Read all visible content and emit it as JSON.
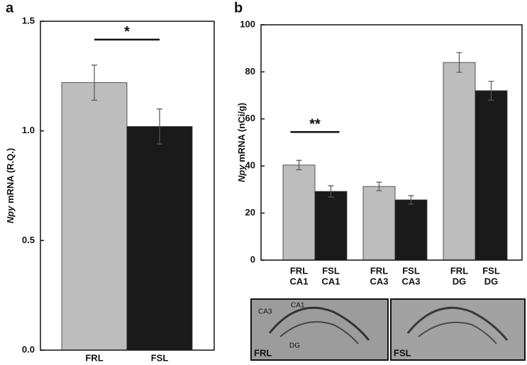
{
  "chart_data": [
    {
      "type": "bar",
      "panel": "a",
      "y_label": [
        "Npy",
        " mRNA (R.Q.)"
      ],
      "categories": [
        [
          "FRL"
        ],
        [
          "FSL"
        ]
      ],
      "values": [
        1.22,
        1.02
      ],
      "errors": [
        0.08,
        0.08
      ],
      "colors": [
        "#bdbdbd",
        "#1a1a1a"
      ],
      "ylim": [
        0,
        1.5
      ],
      "yticks": [
        {
          "value": 0,
          "label": "0.0"
        },
        0.5,
        {
          "value": 1,
          "label": "1.0"
        },
        1.5
      ],
      "significance": "*"
    },
    {
      "type": "bar",
      "panel": "b",
      "y_label": [
        "Npy",
        " mRNA (nCi/g)"
      ],
      "categories": [
        [
          "FRL",
          "CA1"
        ],
        [
          "FSL",
          "CA1"
        ],
        [
          "FRL",
          "CA3"
        ],
        [
          "FSL",
          "CA3"
        ],
        [
          "FRL",
          "DG"
        ],
        [
          "FSL",
          "DG"
        ]
      ],
      "values": [
        40.4,
        29.2,
        31.3,
        25.6,
        84,
        72
      ],
      "errors": [
        2,
        2.4,
        1.8,
        1.8,
        4.2,
        4
      ],
      "colors": [
        "#bdbdbd",
        "#1a1a1a",
        "#bdbdbd",
        "#1a1a1a",
        "#bdbdbd",
        "#1a1a1a"
      ],
      "ylim": [
        0,
        100
      ],
      "yticks": [
        0,
        20,
        40,
        60,
        80,
        100
      ],
      "significance": "**"
    }
  ],
  "images": [
    {
      "label": "FRL",
      "annotations": [
        "CA3",
        "CA1",
        "DG"
      ]
    },
    {
      "label": "FSL"
    }
  ]
}
